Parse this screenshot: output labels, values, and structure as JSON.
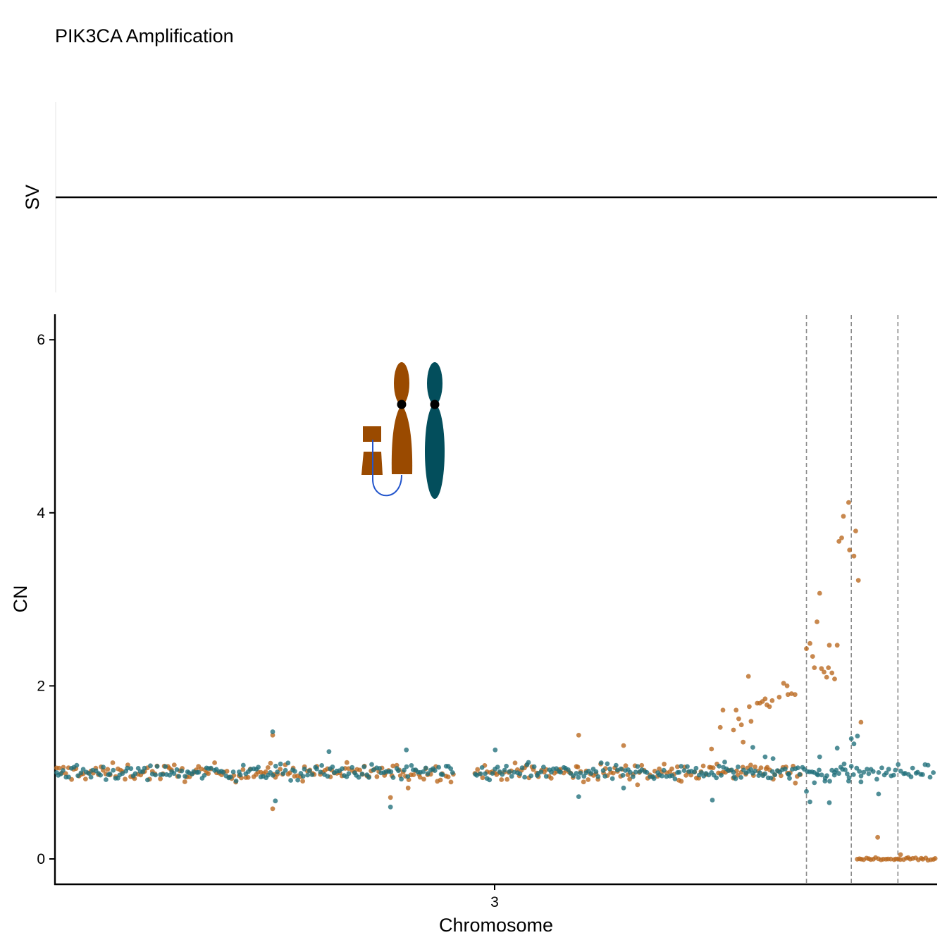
{
  "chart_data": {
    "type": "scatter",
    "title": "PIK3CA Amplification",
    "panels": [
      {
        "name": "SV",
        "ylabel": "SV",
        "description_level": 0
      },
      {
        "name": "CN",
        "ylabel": "CN",
        "xlabel": "Chromosome",
        "x_ticks": [
          "3"
        ],
        "ylim": [
          -0.3,
          6.3
        ],
        "y_ticks": [
          0,
          2,
          4,
          6
        ],
        "xlim": [
          0,
          1
        ],
        "x_tick_position": 0.5,
        "breakpoints_x": [
          0.853,
          0.904,
          0.957
        ],
        "grid": false
      }
    ],
    "series": [
      {
        "name": "",
        "color": "#b8661c",
        "segments": [
          {
            "x_from": 0.0,
            "x_to": 0.848,
            "mean": 1.0,
            "noise": 0.07
          },
          {
            "x_from": 0.91,
            "x_to": 1.0,
            "mean": 0.0,
            "noise": 0.012
          }
        ],
        "points": [
          {
            "x": 0.246,
            "y": 1.43
          },
          {
            "x": 0.246,
            "y": 0.58
          },
          {
            "x": 0.38,
            "y": 0.71
          },
          {
            "x": 0.4,
            "y": 0.82
          },
          {
            "x": 0.594,
            "y": 1.43
          },
          {
            "x": 0.645,
            "y": 1.31
          },
          {
            "x": 0.745,
            "y": 1.27
          },
          {
            "x": 0.755,
            "y": 1.52
          },
          {
            "x": 0.758,
            "y": 1.72
          },
          {
            "x": 0.77,
            "y": 1.49
          },
          {
            "x": 0.773,
            "y": 1.72
          },
          {
            "x": 0.776,
            "y": 1.62
          },
          {
            "x": 0.779,
            "y": 1.55
          },
          {
            "x": 0.781,
            "y": 1.35
          },
          {
            "x": 0.787,
            "y": 2.11
          },
          {
            "x": 0.788,
            "y": 1.76
          },
          {
            "x": 0.79,
            "y": 1.59
          },
          {
            "x": 0.797,
            "y": 1.8
          },
          {
            "x": 0.8,
            "y": 1.8
          },
          {
            "x": 0.803,
            "y": 1.82
          },
          {
            "x": 0.806,
            "y": 1.85
          },
          {
            "x": 0.808,
            "y": 1.78
          },
          {
            "x": 0.811,
            "y": 1.76
          },
          {
            "x": 0.814,
            "y": 1.83
          },
          {
            "x": 0.822,
            "y": 1.87
          },
          {
            "x": 0.827,
            "y": 2.03
          },
          {
            "x": 0.831,
            "y": 2.0
          },
          {
            "x": 0.832,
            "y": 1.9
          },
          {
            "x": 0.836,
            "y": 1.91
          },
          {
            "x": 0.84,
            "y": 1.9
          },
          {
            "x": 0.853,
            "y": 2.43
          },
          {
            "x": 0.857,
            "y": 2.49
          },
          {
            "x": 0.86,
            "y": 2.34
          },
          {
            "x": 0.862,
            "y": 2.21
          },
          {
            "x": 0.865,
            "y": 2.74
          },
          {
            "x": 0.868,
            "y": 3.07
          },
          {
            "x": 0.87,
            "y": 2.2
          },
          {
            "x": 0.873,
            "y": 2.16
          },
          {
            "x": 0.876,
            "y": 2.1
          },
          {
            "x": 0.878,
            "y": 2.21
          },
          {
            "x": 0.879,
            "y": 2.47
          },
          {
            "x": 0.882,
            "y": 2.15
          },
          {
            "x": 0.885,
            "y": 2.08
          },
          {
            "x": 0.888,
            "y": 2.47
          },
          {
            "x": 0.89,
            "y": 3.67
          },
          {
            "x": 0.893,
            "y": 3.71
          },
          {
            "x": 0.895,
            "y": 3.96
          },
          {
            "x": 0.901,
            "y": 4.12
          },
          {
            "x": 0.902,
            "y": 3.57
          },
          {
            "x": 0.907,
            "y": 3.5
          },
          {
            "x": 0.909,
            "y": 3.79
          },
          {
            "x": 0.912,
            "y": 3.22
          },
          {
            "x": 0.915,
            "y": 1.58
          },
          {
            "x": 0.934,
            "y": 0.25
          },
          {
            "x": 0.96,
            "y": 0.05
          }
        ]
      },
      {
        "name": "",
        "color": "#1f6e7a",
        "segments": [
          {
            "x_from": 0.0,
            "x_to": 0.998,
            "mean": 1.0,
            "noise": 0.065
          }
        ],
        "points": [
          {
            "x": 0.246,
            "y": 1.47
          },
          {
            "x": 0.249,
            "y": 0.67
          },
          {
            "x": 0.31,
            "y": 1.24
          },
          {
            "x": 0.38,
            "y": 0.6
          },
          {
            "x": 0.398,
            "y": 1.26
          },
          {
            "x": 0.499,
            "y": 1.26
          },
          {
            "x": 0.594,
            "y": 0.72
          },
          {
            "x": 0.645,
            "y": 0.82
          },
          {
            "x": 0.746,
            "y": 0.68
          },
          {
            "x": 0.76,
            "y": 1.12
          },
          {
            "x": 0.77,
            "y": 1.0
          },
          {
            "x": 0.792,
            "y": 1.29
          },
          {
            "x": 0.806,
            "y": 1.18
          },
          {
            "x": 0.815,
            "y": 1.16
          },
          {
            "x": 0.833,
            "y": 0.98
          },
          {
            "x": 0.853,
            "y": 0.78
          },
          {
            "x": 0.857,
            "y": 0.66
          },
          {
            "x": 0.862,
            "y": 0.88
          },
          {
            "x": 0.866,
            "y": 0.97
          },
          {
            "x": 0.868,
            "y": 1.18
          },
          {
            "x": 0.874,
            "y": 0.9
          },
          {
            "x": 0.879,
            "y": 0.65
          },
          {
            "x": 0.885,
            "y": 1.0
          },
          {
            "x": 0.888,
            "y": 1.28
          },
          {
            "x": 0.892,
            "y": 1.06
          },
          {
            "x": 0.897,
            "y": 1.03
          },
          {
            "x": 0.901,
            "y": 0.9
          },
          {
            "x": 0.904,
            "y": 1.39
          },
          {
            "x": 0.907,
            "y": 1.33
          },
          {
            "x": 0.911,
            "y": 1.42
          },
          {
            "x": 0.915,
            "y": 0.89
          },
          {
            "x": 0.935,
            "y": 0.75
          }
        ]
      }
    ],
    "gaps_x": [
      [
        0.452,
        0.474
      ]
    ]
  },
  "ideogram": {
    "colors": {
      "fragment": "#9a4a00",
      "derivative": "#9a4a00",
      "normal": "#034e5c",
      "link": "#2255cc",
      "centromere": "#000000"
    },
    "icon": "chromosome-ideogram"
  }
}
